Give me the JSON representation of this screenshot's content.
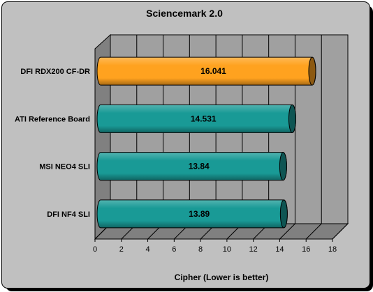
{
  "chart_data": {
    "type": "bar",
    "orientation": "horizontal",
    "title": "Sciencemark 2.0",
    "xlabel": "Cipher (Lower is better)",
    "ylabel": "",
    "xlim": [
      0,
      18
    ],
    "x_ticks": [
      "0",
      "2",
      "4",
      "6",
      "8",
      "10",
      "12",
      "14",
      "16",
      "18"
    ],
    "grid": true,
    "categories": [
      "DFI RDX200 CF-DR",
      "ATI Reference Board",
      "MSI NEO4 SLI",
      "DFI NF4 SLI"
    ],
    "values": [
      16.041,
      14.531,
      13.84,
      13.89
    ],
    "value_labels": [
      "16.041",
      "14.531",
      "13.84",
      "13.89"
    ],
    "bar_colors": [
      "#ffa21f",
      "#199a96",
      "#199a96",
      "#199a96"
    ],
    "colors": {
      "background": "#c0c0c0",
      "plot_back": "#a0a0a0",
      "highlight": "#ffa21f",
      "series": "#199a96"
    }
  }
}
